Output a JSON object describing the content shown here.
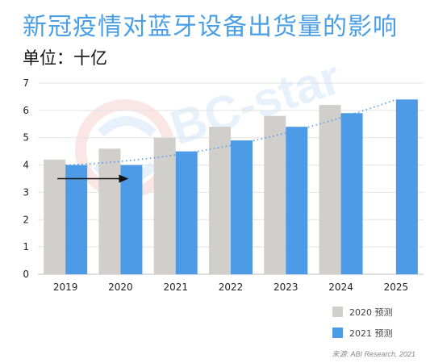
{
  "title": "新冠疫情对蓝牙设备出货量的影响",
  "subtitle": "单位：十亿",
  "source": "来源: ABI Research, 2021",
  "chart_data": {
    "type": "bar",
    "categories": [
      "2019",
      "2020",
      "2021",
      "2022",
      "2023",
      "2024",
      "2025"
    ],
    "series": [
      {
        "name": "2020 预测",
        "color": "#d0cfcc",
        "values": [
          4.2,
          4.6,
          5.0,
          5.4,
          5.8,
          6.2,
          null
        ]
      },
      {
        "name": "2021 预测",
        "color": "#4d9be6",
        "values": [
          4.0,
          4.0,
          4.5,
          4.9,
          5.4,
          5.9,
          6.4
        ]
      }
    ],
    "yticks": [
      0,
      1,
      2,
      3,
      4,
      5,
      6,
      7
    ],
    "ylim": [
      0,
      7
    ],
    "trendline": {
      "style": "dotted",
      "color": "#4d9be6",
      "from_value": 4.0,
      "to_value": 6.4
    },
    "annotation_arrow": {
      "from_category": "2019",
      "to_category": "2020",
      "value": 3.5
    },
    "grid": true,
    "legend": "bottom-right"
  }
}
